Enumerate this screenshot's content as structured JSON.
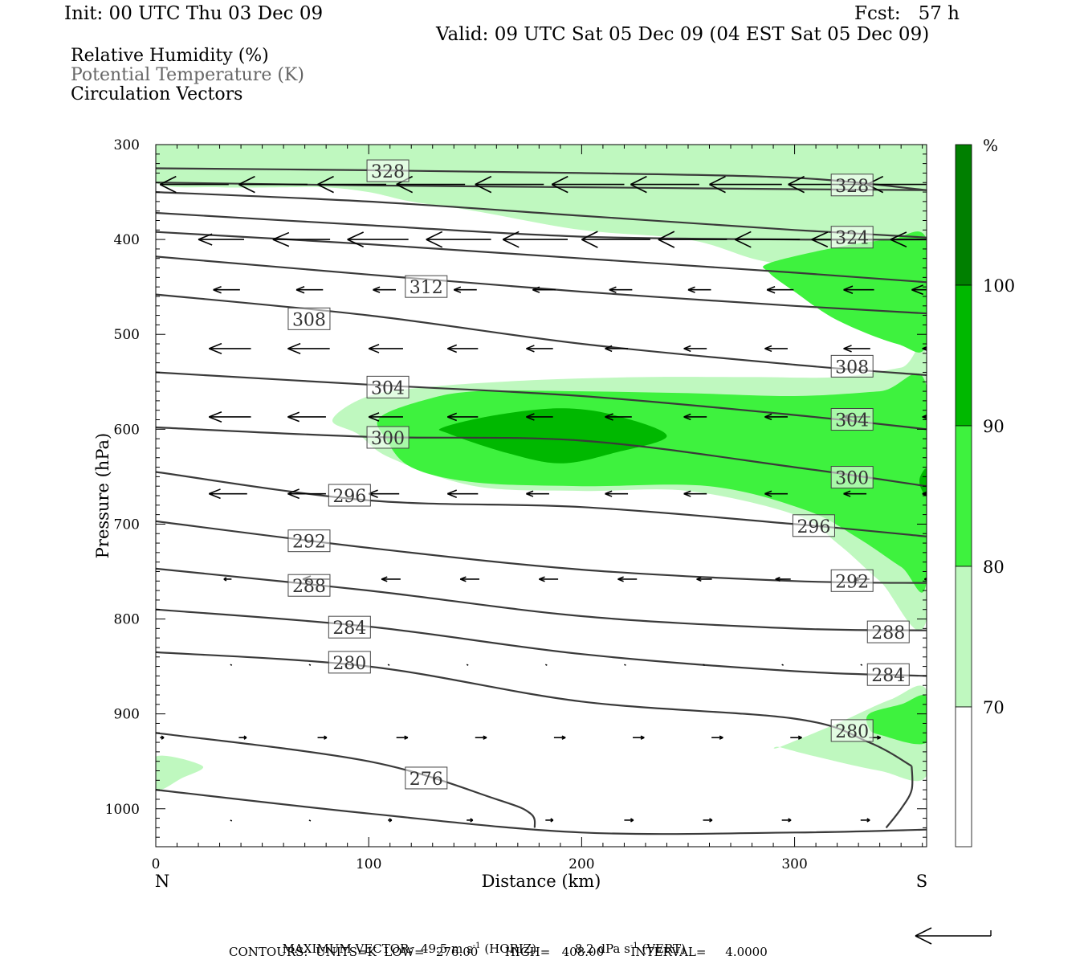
{
  "header": {
    "init": "Init: 00 UTC Thu 03 Dec 09",
    "fcst": "Fcst:   57 h",
    "valid": "Valid: 09 UTC Sat 05 Dec 09 (04 EST Sat 05 Dec 09)"
  },
  "fields": {
    "shaded": "Relative Humidity (%)",
    "contour": "Potential Temperature (K)",
    "vectors": "Circulation Vectors"
  },
  "colors": {
    "rh_70": "#bff8bf",
    "rh_80": "#3ef23e",
    "rh_90": "#00b800",
    "rh_100": "#007f00",
    "contour_line": "#3a3a3a",
    "vector": "#000000"
  },
  "colorbar": {
    "unit": "%",
    "levels": [
      "100",
      "90",
      "80",
      "70"
    ]
  },
  "chart_data": {
    "type": "contour",
    "xlabel": "Distance (km)",
    "ylabel": "Pressure (hPa)",
    "xlim": [
      0,
      362
    ],
    "ylim": [
      1040,
      300
    ],
    "x_ticks": [
      "0",
      "100",
      "200",
      "300"
    ],
    "x_tick_values": [
      0,
      100,
      200,
      300
    ],
    "y_ticks": [
      "300",
      "400",
      "500",
      "600",
      "700",
      "800",
      "900",
      "1000"
    ],
    "y_tick_values": [
      300,
      400,
      500,
      600,
      700,
      800,
      900,
      1000
    ],
    "left_end_label": "N",
    "right_end_label": "S",
    "theta_contours": [
      {
        "label": "328",
        "x": [
          0,
          100,
          200,
          300,
          362
        ],
        "p": [
          325,
          327,
          330,
          335,
          348
        ]
      },
      {
        "label": "",
        "x": [
          0,
          100,
          200,
          300,
          362
        ],
        "p": [
          340,
          343,
          345,
          347,
          348
        ]
      },
      {
        "label": "",
        "x": [
          0,
          100,
          200,
          300,
          362
        ],
        "p": [
          350,
          360,
          375,
          390,
          398
        ]
      },
      {
        "label": "324",
        "x": [
          0,
          100,
          200,
          300,
          362
        ],
        "p": [
          372,
          385,
          397,
          400,
          400
        ]
      },
      {
        "label": "",
        "x": [
          0,
          100,
          200,
          300,
          362
        ],
        "p": [
          392,
          405,
          420,
          435,
          445
        ]
      },
      {
        "label": "312",
        "x": [
          0,
          100,
          200,
          300,
          362
        ],
        "p": [
          418,
          437,
          455,
          470,
          478
        ]
      },
      {
        "label": "308",
        "x": [
          0,
          100,
          200,
          300,
          362
        ],
        "p": [
          458,
          480,
          510,
          532,
          543
        ]
      },
      {
        "label": "304",
        "x": [
          0,
          100,
          200,
          300,
          362
        ],
        "p": [
          540,
          553,
          565,
          585,
          600
        ]
      },
      {
        "label": "300",
        "x": [
          0,
          100,
          200,
          300,
          362
        ],
        "p": [
          598,
          608,
          612,
          640,
          660
        ]
      },
      {
        "label": "296",
        "x": [
          0,
          100,
          200,
          300,
          362
        ],
        "p": [
          645,
          675,
          682,
          700,
          713
        ]
      },
      {
        "label": "292",
        "x": [
          0,
          100,
          200,
          300,
          362
        ],
        "p": [
          697,
          725,
          748,
          760,
          762
        ]
      },
      {
        "label": "288",
        "x": [
          0,
          100,
          200,
          300,
          362
        ],
        "p": [
          747,
          770,
          797,
          810,
          812
        ]
      },
      {
        "label": "284",
        "x": [
          0,
          100,
          200,
          300,
          362
        ],
        "p": [
          790,
          808,
          837,
          855,
          860
        ]
      },
      {
        "label": "280",
        "x": [
          0,
          100,
          200,
          300,
          335,
          355
        ],
        "p": [
          835,
          850,
          887,
          905,
          930,
          955
        ]
      },
      {
        "label": "276",
        "x": [
          0,
          100,
          160,
          176,
          178
        ],
        "p": [
          920,
          950,
          990,
          1005,
          1020
        ]
      },
      {
        "label": "",
        "x": [
          0,
          100,
          200,
          300,
          362
        ],
        "p": [
          980,
          1005,
          1025,
          1025,
          1022
        ]
      },
      {
        "label": "",
        "x": [
          343,
          350,
          355,
          355
        ],
        "p": [
          1020,
          1000,
          980,
          955
        ]
      }
    ],
    "contour_labels": [
      {
        "text": "328",
        "x": 109,
        "p": 328
      },
      {
        "text": "328",
        "x": 327,
        "p": 343
      },
      {
        "text": "324",
        "x": 327,
        "p": 398
      },
      {
        "text": "312",
        "x": 127,
        "p": 450
      },
      {
        "text": "308",
        "x": 72,
        "p": 484
      },
      {
        "text": "308",
        "x": 327,
        "p": 534
      },
      {
        "text": "304",
        "x": 109,
        "p": 556
      },
      {
        "text": "304",
        "x": 327,
        "p": 590
      },
      {
        "text": "300",
        "x": 109,
        "p": 609
      },
      {
        "text": "300",
        "x": 327,
        "p": 651
      },
      {
        "text": "296",
        "x": 91,
        "p": 670
      },
      {
        "text": "296",
        "x": 309,
        "p": 702
      },
      {
        "text": "292",
        "x": 72,
        "p": 718
      },
      {
        "text": "292",
        "x": 327,
        "p": 760
      },
      {
        "text": "288",
        "x": 72,
        "p": 765
      },
      {
        "text": "288",
        "x": 344,
        "p": 814
      },
      {
        "text": "284",
        "x": 91,
        "p": 809
      },
      {
        "text": "284",
        "x": 344,
        "p": 859
      },
      {
        "text": "280",
        "x": 91,
        "p": 846
      },
      {
        "text": "280",
        "x": 327,
        "p": 918
      },
      {
        "text": "276",
        "x": 127,
        "p": 968
      }
    ],
    "rh_regions": [
      {
        "level": 70,
        "x": [
          0,
          30,
          60,
          100,
          140,
          180,
          220,
          260,
          290,
          315,
          340,
          362,
          362,
          340,
          300,
          280,
          250,
          200,
          150,
          120,
          100,
          80,
          60,
          30,
          0
        ],
        "p": [
          300,
          300,
          300,
          300,
          300,
          300,
          300,
          300,
          300,
          300,
          300,
          300,
          475,
          460,
          430,
          420,
          400,
          390,
          370,
          360,
          350,
          345,
          345,
          345,
          340
        ]
      },
      {
        "level": 70,
        "x": [
          83,
          100,
          130,
          180,
          230,
          280,
          320,
          350,
          362,
          362,
          340,
          320,
          300,
          250,
          200,
          150,
          110,
          95
        ],
        "p": [
          590,
          565,
          555,
          548,
          545,
          545,
          545,
          535,
          528,
          800,
          760,
          720,
          690,
          665,
          665,
          660,
          630,
          605
        ]
      },
      {
        "level": 70,
        "x": [
          0,
          22,
          12,
          0
        ],
        "p": [
          945,
          955,
          968,
          980
        ]
      },
      {
        "level": 70,
        "x": [
          293,
          320,
          345,
          362,
          362,
          340,
          310,
          293
        ],
        "p": [
          935,
          910,
          885,
          875,
          965,
          960,
          945,
          935
        ]
      },
      {
        "level": 80,
        "x": [
          105,
          125,
          150,
          200,
          250,
          300,
          340,
          362,
          362,
          350,
          330,
          305,
          260,
          200,
          150,
          120,
          108
        ],
        "p": [
          588,
          570,
          560,
          560,
          562,
          565,
          560,
          555,
          760,
          745,
          715,
          685,
          660,
          660,
          656,
          640,
          610
        ]
      },
      {
        "level": 80,
        "x": [
          288,
          320,
          345,
          362,
          362,
          348,
          320,
          300,
          288
        ],
        "p": [
          425,
          408,
          400,
          400,
          510,
          510,
          485,
          455,
          435
        ]
      },
      {
        "level": 80,
        "x": [
          335,
          350,
          362,
          362,
          340,
          335
        ],
        "p": [
          900,
          890,
          882,
          930,
          922,
          915
        ]
      },
      {
        "level": 90,
        "x": [
          135,
          160,
          190,
          215,
          240,
          215,
          190,
          165,
          138
        ],
        "p": [
          598,
          585,
          578,
          585,
          607,
          625,
          636,
          625,
          605
        ]
      },
      {
        "level": 90,
        "x": [
          359,
          362,
          362,
          359
        ],
        "p": [
          650,
          642,
          670,
          660
        ]
      }
    ],
    "vectors": {
      "unit_note": "reference arrow = 49.5 m/s horizontal",
      "rows": [
        {
          "p": 342,
          "x": [
            2,
            39,
            76,
            113,
            150,
            186,
            223,
            260,
            297,
            334
          ],
          "u": [
            -1,
            -1,
            -1,
            -1,
            -1,
            -1,
            -1,
            -1,
            -1,
            -1
          ],
          "mag": [
            0.9,
            0.9,
            0.9,
            0.9,
            0.9,
            0.95,
            0.9,
            0.95,
            0.95,
            0.9
          ]
        },
        {
          "p": 400,
          "x": [
            20,
            55,
            90,
            127,
            163,
            200,
            236,
            272,
            308,
            345
          ],
          "u": [
            -1,
            -1,
            -1,
            -1,
            -1,
            -1,
            -1,
            -1,
            -1,
            -1
          ],
          "mag": [
            0.6,
            0.75,
            0.8,
            0.85,
            0.85,
            0.9,
            0.9,
            0.85,
            0.8,
            0.8
          ]
        },
        {
          "p": 453,
          "x": [
            27,
            66,
            102,
            140,
            177,
            213,
            250,
            287,
            323,
            355
          ],
          "u": [
            -1,
            -1,
            -1,
            -1,
            -1,
            -1,
            -1,
            -1,
            -1,
            -1
          ],
          "mag": [
            0.35,
            0.35,
            0.3,
            0.3,
            0.3,
            0.3,
            0.3,
            0.35,
            0.4,
            0.5
          ]
        },
        {
          "p": 515,
          "x": [
            25,
            62,
            100,
            137,
            174,
            211,
            248,
            286,
            323,
            360
          ],
          "u": [
            -1,
            -1,
            -1,
            -1,
            -1,
            -1,
            -1,
            -1,
            -1,
            -1
          ],
          "mag": [
            0.55,
            0.55,
            0.45,
            0.4,
            0.35,
            0.3,
            0.3,
            0.3,
            0.35,
            0.4
          ]
        },
        {
          "p": 587,
          "x": [
            25,
            62,
            100,
            137,
            174,
            211,
            248,
            286,
            323,
            360
          ],
          "u": [
            -1,
            -1,
            -1,
            -1,
            -1,
            -1,
            -1,
            -1,
            -1,
            -1
          ],
          "mag": [
            0.55,
            0.5,
            0.45,
            0.4,
            0.35,
            0.35,
            0.3,
            0.3,
            0.35,
            0.35
          ]
        },
        {
          "p": 668,
          "x": [
            25,
            62,
            100,
            137,
            174,
            211,
            248,
            286,
            323,
            360
          ],
          "u": [
            -1,
            -1,
            -1,
            -1,
            -1,
            -1,
            -1,
            -1,
            -1,
            -1
          ],
          "mag": [
            0.5,
            0.5,
            0.4,
            0.4,
            0.3,
            0.3,
            0.3,
            0.3,
            0.3,
            0.3
          ]
        },
        {
          "p": 758,
          "x": [
            32,
            69,
            106,
            143,
            180,
            217,
            254,
            291,
            328,
            361
          ],
          "u": [
            -1,
            -1,
            -1,
            -1,
            -1,
            -1,
            -1,
            -1,
            -1,
            -1
          ],
          "mag": [
            0.1,
            0.35,
            0.25,
            0.25,
            0.25,
            0.25,
            0.2,
            0.2,
            0.2,
            0.15
          ]
        },
        {
          "p": 848,
          "x": [
            35,
            72,
            109,
            146,
            183,
            220,
            257,
            294,
            331
          ],
          "u": [
            0,
            0,
            0,
            0,
            0,
            0,
            0,
            0,
            0
          ],
          "mag": [
            0.02,
            0.02,
            0.02,
            0.03,
            0.02,
            0.02,
            0.02,
            0.02,
            0.02
          ]
        },
        {
          "p": 925,
          "x": [
            2,
            39,
            76,
            113,
            150,
            187,
            224,
            261,
            298,
            335
          ],
          "u": [
            1,
            1,
            1,
            1,
            1,
            1,
            1,
            1,
            1,
            1
          ],
          "mag": [
            0.05,
            0.1,
            0.12,
            0.15,
            0.15,
            0.15,
            0.15,
            0.15,
            0.15,
            0.15
          ]
        },
        {
          "p": 1012,
          "x": [
            35,
            72,
            109,
            146,
            183,
            220,
            257,
            294,
            331
          ],
          "u": [
            0,
            0,
            1,
            1,
            1,
            1,
            1,
            1,
            1
          ],
          "mag": [
            0.02,
            0.02,
            0.05,
            0.08,
            0.1,
            0.12,
            0.12,
            0.12,
            0.12
          ]
        }
      ]
    }
  },
  "footer": {
    "max_vector_label": "MAXIMUM VECTOR:",
    "max_vector_horiz": "49.5 m s",
    "max_vector_horiz_tag": "(HORIZ)",
    "max_vector_vert": "8.2 dPa s",
    "max_vector_vert_tag": "(VERT)",
    "exp": "-1",
    "contours": "CONTOURS:  UNITS=K  LOW=   276.00       HIGH=   408.00       INTERVAL=     4.0000"
  }
}
